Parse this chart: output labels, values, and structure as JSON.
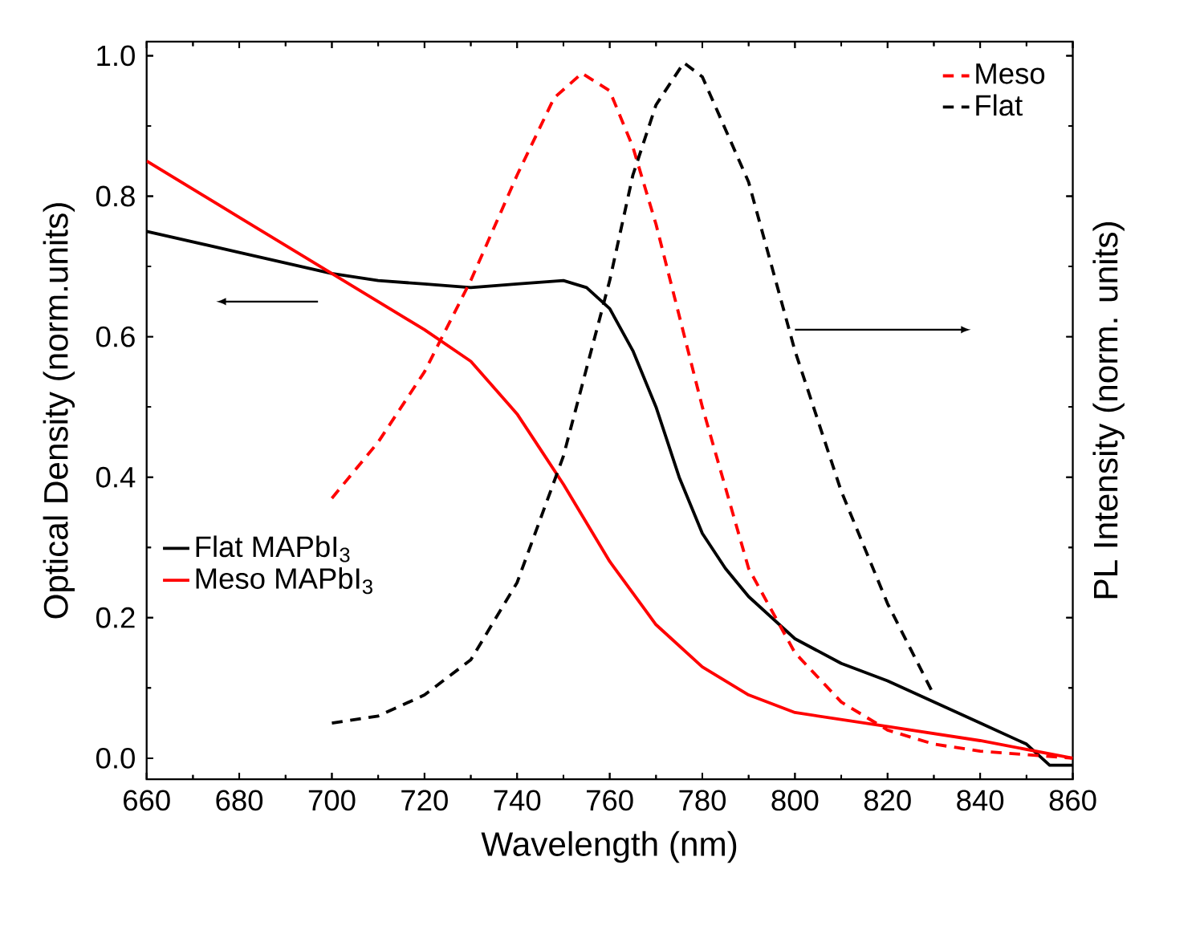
{
  "chart_data": {
    "type": "line",
    "xlabel": "Wavelength (nm)",
    "ylabel": "Optical Density (norm.units)",
    "y2label": "PL Intensity (norm. units)",
    "xlim": [
      660,
      860
    ],
    "ylim": [
      -0.03,
      1.02
    ],
    "xticks": [
      660,
      680,
      700,
      720,
      740,
      760,
      780,
      800,
      820,
      840,
      860
    ],
    "yticks": [
      {
        "value": 0,
        "label": "0.0"
      },
      {
        "value": 0.2,
        "label": "0.2"
      },
      {
        "value": 0.4,
        "label": "0.4"
      },
      {
        "value": 0.6,
        "label": "0.6"
      },
      {
        "value": 0.8,
        "label": "0.8"
      },
      {
        "value": 1,
        "label": "1.0"
      }
    ],
    "legend": "top right",
    "grid": false,
    "marker": "none",
    "series": [
      {
        "name": "Flat MAPbI$_{3}$",
        "color": "#000000",
        "line_style": "solid",
        "x": [
          660,
          680,
          700,
          710,
          720,
          730,
          740,
          750,
          755,
          760,
          765,
          770,
          775,
          780,
          785,
          790,
          800,
          810,
          820,
          830,
          840,
          850,
          855,
          860
        ],
        "values": [
          0.75,
          0.72,
          0.69,
          0.68,
          0.675,
          0.67,
          0.675,
          0.68,
          0.67,
          0.64,
          0.58,
          0.5,
          0.4,
          0.32,
          0.27,
          0.23,
          0.17,
          0.135,
          0.11,
          0.08,
          0.05,
          0.02,
          -0.01,
          -0.01
        ]
      },
      {
        "name": "Meso MAPbI$_{3}$",
        "color": "#ff0000",
        "line_style": "solid",
        "x": [
          660,
          680,
          700,
          720,
          730,
          740,
          745,
          750,
          760,
          770,
          780,
          790,
          800,
          820,
          840,
          860
        ],
        "values": [
          0.85,
          0.77,
          0.69,
          0.61,
          0.565,
          0.49,
          0.44,
          0.39,
          0.28,
          0.19,
          0.13,
          0.09,
          0.065,
          0.045,
          0.025,
          0.0
        ]
      },
      {
        "name": "Meso",
        "color": "#ff0000",
        "line_style": "dashed",
        "x": [
          700,
          710,
          720,
          730,
          740,
          748,
          754,
          760,
          765,
          770,
          780,
          790,
          800,
          810,
          820,
          830,
          840,
          850,
          860
        ],
        "values": [
          0.37,
          0.45,
          0.55,
          0.68,
          0.83,
          0.94,
          0.975,
          0.95,
          0.87,
          0.76,
          0.5,
          0.27,
          0.15,
          0.08,
          0.04,
          0.02,
          0.01,
          0.005,
          0.0
        ]
      },
      {
        "name": "Flat",
        "color": "#000000",
        "line_style": "dashed",
        "x": [
          700,
          710,
          720,
          730,
          740,
          750,
          760,
          765,
          770,
          776,
          780,
          790,
          800,
          810,
          820,
          830
        ],
        "values": [
          0.05,
          0.06,
          0.09,
          0.14,
          0.25,
          0.43,
          0.68,
          0.83,
          0.93,
          0.99,
          0.97,
          0.82,
          0.58,
          0.38,
          0.22,
          0.09
        ]
      }
    ]
  }
}
